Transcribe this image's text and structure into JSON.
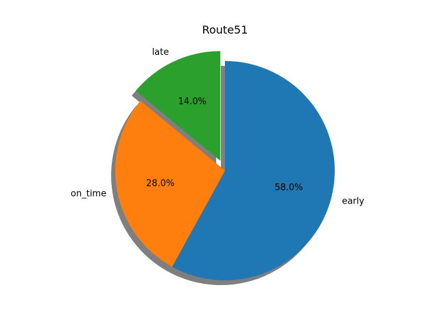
{
  "chart_data": {
    "type": "pie",
    "title": "Route51",
    "categories": [
      "early",
      "on_time",
      "late"
    ],
    "values": [
      58.0,
      28.0,
      14.0
    ],
    "percent_labels": [
      "58.0%",
      "28.0%",
      "14.0%"
    ],
    "colors": [
      "#1f77b4",
      "#ff7f0e",
      "#2ca02c"
    ],
    "explode": [
      0,
      0,
      0.1
    ],
    "start_angle_deg": 90,
    "direction": "clockwise",
    "shadow": true,
    "legend": "none"
  }
}
